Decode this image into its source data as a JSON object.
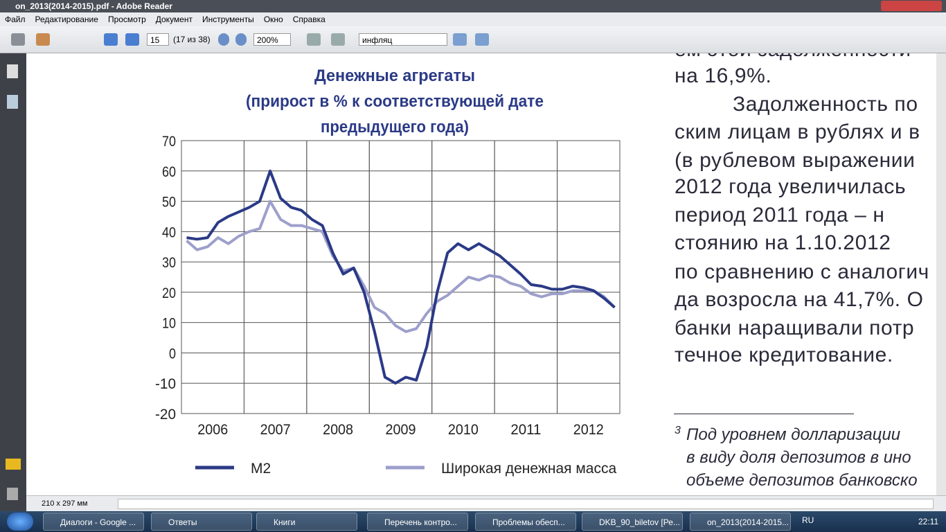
{
  "window_title": "on_2013(2014-2015).pdf - Adobe Reader",
  "menu": [
    "Файл",
    "Редактирование",
    "Просмотр",
    "Документ",
    "Инструменты",
    "Окно",
    "Справка"
  ],
  "toolbar": {
    "page": "15",
    "page_of": "(17 из 38)",
    "zoom": "200%",
    "search": "инфляц"
  },
  "chart_data": {
    "type": "line",
    "title": [
      "Денежные агрегаты",
      "(прирост в % к соответствующей дате",
      "предыдущего года)"
    ],
    "categories": [
      null,
      null,
      null,
      "2006",
      null,
      null,
      null,
      null,
      null,
      "2007",
      null,
      null,
      null,
      null,
      null,
      "2008",
      null,
      null,
      null,
      null,
      null,
      "2009",
      null,
      null,
      null,
      null,
      null,
      "2010",
      null,
      null,
      null,
      null,
      null,
      "2011",
      null,
      null,
      null,
      null,
      null,
      "2012",
      null,
      null
    ],
    "ylim": [
      -20,
      70
    ],
    "yticks": [
      -20,
      -10,
      0,
      10,
      20,
      30,
      40,
      50,
      60,
      70
    ],
    "grid": true,
    "series": [
      {
        "name": "М2",
        "color": "#2b3a86",
        "values": [
          38,
          37.5,
          38,
          43,
          45,
          46.5,
          48,
          50,
          60,
          51,
          48,
          47,
          44,
          42,
          33,
          26,
          28,
          20,
          7,
          -8,
          -10,
          -8,
          -9,
          2,
          20,
          33,
          36,
          34,
          36,
          34,
          32,
          29,
          26,
          22.5,
          22,
          21,
          21,
          22,
          21.5,
          20.5,
          18,
          15
        ]
      },
      {
        "name": "Широкая денежная масса",
        "color": "#9d9fcb",
        "values": [
          37,
          34,
          35,
          38,
          36,
          38.5,
          40,
          41,
          50,
          44,
          42,
          42,
          41,
          40,
          32,
          27,
          28,
          22,
          15,
          13,
          9,
          7,
          8,
          13,
          17,
          19,
          22,
          25,
          24,
          25.5,
          25,
          23,
          22,
          19.5,
          18.5,
          19.5,
          19.5,
          20.5,
          20.5,
          20.5,
          18.5,
          15
        ]
      }
    ]
  },
  "body_text": [
    "ем этой задолженности",
    "на 16,9%.",
    "Задолженность по",
    "ским лицам в рублях и в",
    "(в рублевом выражении",
    "2012 года увеличилась",
    "период 2011 года – н",
    "стоянию на 1.10.2012",
    "по сравнению с аналогич",
    "да возросла на 41,7%. О",
    "банки наращивали потр",
    "течное кредитование."
  ],
  "footnote": {
    "mark": "3",
    "lines": [
      "Под уровнем долларизации",
      "в виду доля депозитов в ино",
      "объеме депозитов банковско"
    ]
  },
  "status": "210 x 297 мм",
  "taskbar": [
    "Диалоги - Google ...",
    "Ответы",
    "Книги",
    "Перечень контро...",
    "Проблемы обесп...",
    "DKB_90_biletov [Ре...",
    "on_2013(2014-2015..."
  ],
  "tray": {
    "lang": "RU",
    "time": "22:11"
  }
}
